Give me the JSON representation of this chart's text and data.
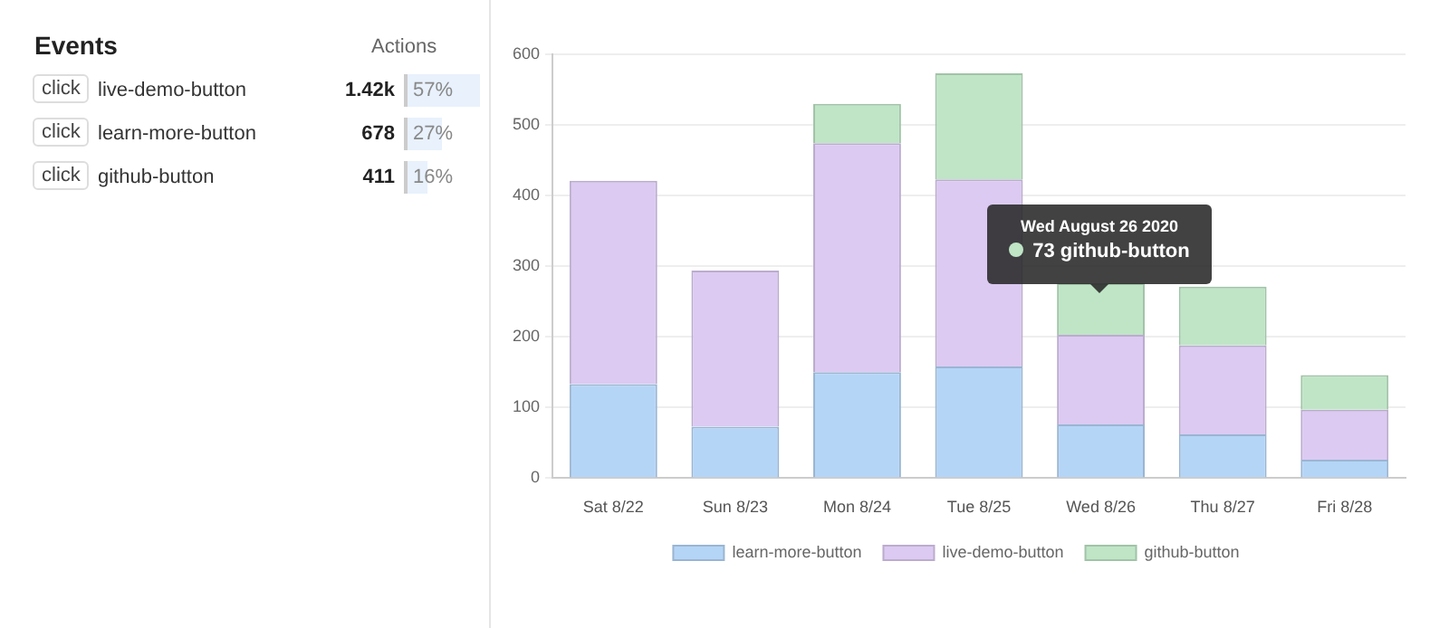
{
  "chart_data": [
    {
      "type": "other",
      "title": "Events",
      "xlabel": "Actions",
      "categories": [
        "live-demo-button",
        "learn-more-button",
        "github-button"
      ],
      "series": [
        {
          "values": [
            1420,
            678,
            411
          ],
          "value_labels": [
            "1.42k",
            "678",
            "411"
          ]
        },
        {
          "values": [
            57,
            27,
            16
          ],
          "value_labels": [
            "57%",
            "27%",
            "16%"
          ],
          "color": "#e8f1fc"
        }
      ],
      "annotations": [
        "click",
        "click",
        "click"
      ]
    },
    {
      "type": "bar",
      "stacked": true,
      "categories": [
        "Sat 8/22",
        "Sun 8/23",
        "Mon 8/24",
        "Tue 8/25",
        "Wed 8/26",
        "Thu 8/27",
        "Fri 8/28"
      ],
      "series": [
        {
          "name": "learn-more-button",
          "color": "#b5d5f7",
          "values": [
            133,
            73,
            150,
            158,
            76,
            62,
            26
          ]
        },
        {
          "name": "live-demo-button",
          "color": "#dccaf2",
          "values": [
            288,
            221,
            324,
            265,
            127,
            126,
            71
          ]
        },
        {
          "name": "github-button",
          "color": "#bfe5c6",
          "values": [
            null,
            null,
            56,
            150,
            73,
            83,
            49
          ]
        }
      ],
      "ylim": [
        0,
        600
      ],
      "yticks": [
        0,
        100,
        200,
        300,
        400,
        500,
        600
      ],
      "grid": "y",
      "legend": "bottom",
      "annotations": [
        "Wed August 26 2020",
        "73 github-button"
      ]
    }
  ]
}
